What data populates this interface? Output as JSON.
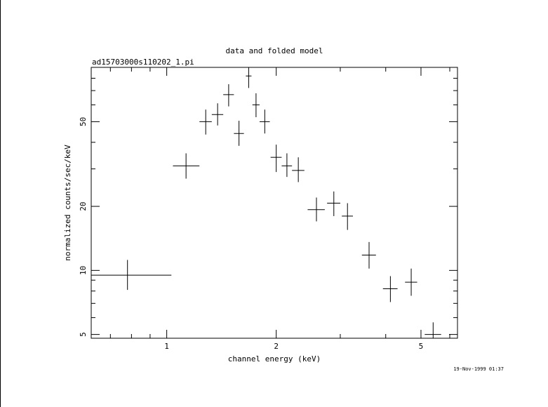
{
  "chart_data": {
    "type": "scatter",
    "title": "data and folded model",
    "subtitle": "ad15703000s110202_1.pi",
    "xlabel": "channel energy (keV)",
    "ylabel": "normalized counts/sec/keV",
    "timestamp": "19-Nov-1999 01:37",
    "x_scale": "log",
    "y_scale": "log",
    "xlim": [
      0.62,
      6.3
    ],
    "ylim": [
      4.8,
      90
    ],
    "x_ticks": [
      {
        "value": 1,
        "label": "1"
      },
      {
        "value": 2,
        "label": "2"
      },
      {
        "value": 5,
        "label": "5"
      }
    ],
    "y_ticks": [
      {
        "value": 5,
        "label": "5"
      },
      {
        "value": 10,
        "label": "10"
      },
      {
        "value": 20,
        "label": "20"
      },
      {
        "value": 50,
        "label": "50"
      }
    ],
    "grid": false,
    "points": [
      {
        "x": 0.78,
        "xlo": 0.62,
        "xhi": 1.03,
        "y": 9.5,
        "ylo": 8.1,
        "yhi": 11.2
      },
      {
        "x": 1.13,
        "xlo": 1.04,
        "xhi": 1.23,
        "y": 31.0,
        "ylo": 27.0,
        "yhi": 35.5
      },
      {
        "x": 1.28,
        "xlo": 1.23,
        "xhi": 1.33,
        "y": 50.0,
        "ylo": 43.5,
        "yhi": 57.0
      },
      {
        "x": 1.38,
        "xlo": 1.33,
        "xhi": 1.43,
        "y": 54.0,
        "ylo": 48.0,
        "yhi": 61.0
      },
      {
        "x": 1.48,
        "xlo": 1.43,
        "xhi": 1.53,
        "y": 67.0,
        "ylo": 59.0,
        "yhi": 75.0
      },
      {
        "x": 1.58,
        "xlo": 1.53,
        "xhi": 1.63,
        "y": 44.0,
        "ylo": 38.5,
        "yhi": 50.5
      },
      {
        "x": 1.68,
        "xlo": 1.65,
        "xhi": 1.71,
        "y": 82.0,
        "ylo": 72.0,
        "yhi": 90.0
      },
      {
        "x": 1.76,
        "xlo": 1.72,
        "xhi": 1.8,
        "y": 60.0,
        "ylo": 52.5,
        "yhi": 68.0
      },
      {
        "x": 1.86,
        "xlo": 1.8,
        "xhi": 1.92,
        "y": 50.0,
        "ylo": 44.0,
        "yhi": 57.0
      },
      {
        "x": 2.0,
        "xlo": 1.93,
        "xhi": 2.07,
        "y": 34.0,
        "ylo": 29.0,
        "yhi": 39.0
      },
      {
        "x": 2.14,
        "xlo": 2.07,
        "xhi": 2.21,
        "y": 31.0,
        "ylo": 27.5,
        "yhi": 35.5
      },
      {
        "x": 2.3,
        "xlo": 2.21,
        "xhi": 2.39,
        "y": 29.5,
        "ylo": 26.0,
        "yhi": 34.0
      },
      {
        "x": 2.58,
        "xlo": 2.44,
        "xhi": 2.72,
        "y": 19.3,
        "ylo": 17.0,
        "yhi": 22.0
      },
      {
        "x": 2.88,
        "xlo": 2.76,
        "xhi": 3.0,
        "y": 20.7,
        "ylo": 18.0,
        "yhi": 23.5
      },
      {
        "x": 3.14,
        "xlo": 3.03,
        "xhi": 3.25,
        "y": 18.0,
        "ylo": 15.5,
        "yhi": 20.7
      },
      {
        "x": 3.6,
        "xlo": 3.44,
        "xhi": 3.76,
        "y": 11.8,
        "ylo": 10.2,
        "yhi": 13.6
      },
      {
        "x": 4.12,
        "xlo": 3.93,
        "xhi": 4.31,
        "y": 8.2,
        "ylo": 7.1,
        "yhi": 9.4
      },
      {
        "x": 4.7,
        "xlo": 4.52,
        "xhi": 4.88,
        "y": 8.8,
        "ylo": 7.6,
        "yhi": 10.2
      },
      {
        "x": 5.4,
        "xlo": 5.12,
        "xhi": 5.68,
        "y": 5.0,
        "ylo": 4.8,
        "yhi": 5.7
      }
    ]
  }
}
